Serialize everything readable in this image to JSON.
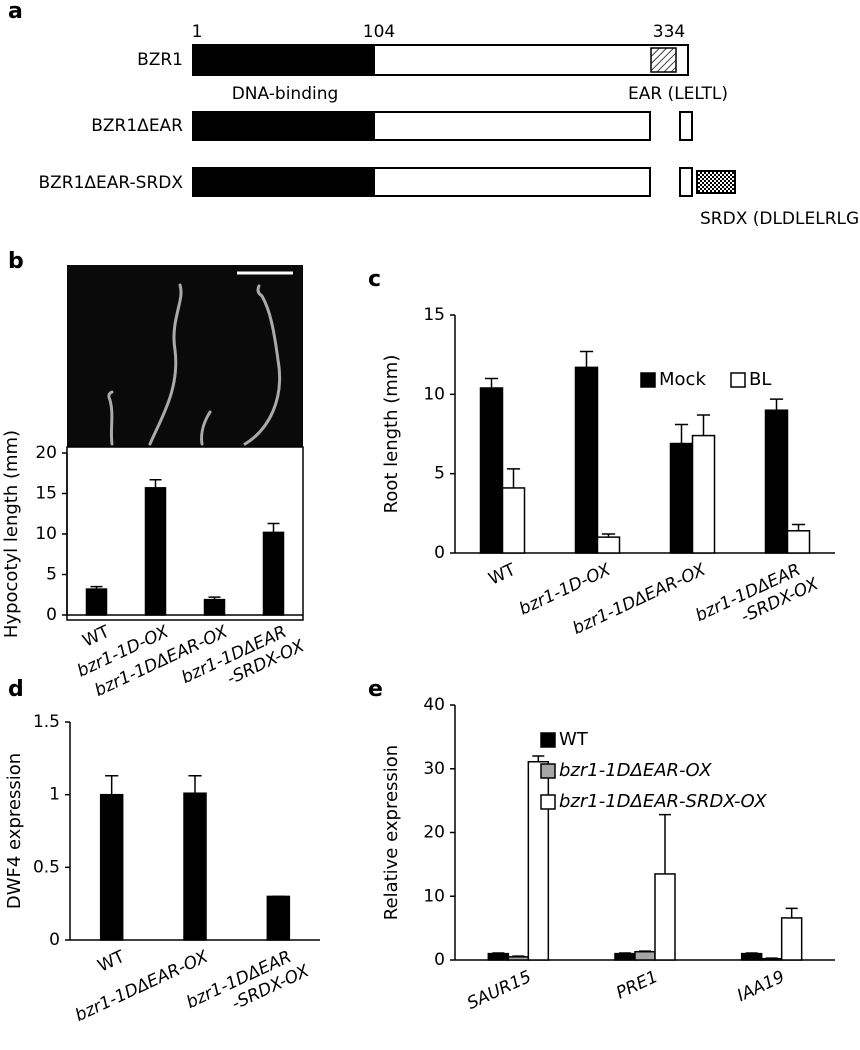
{
  "diagram": {
    "panel_label": "a",
    "positions": [
      "1",
      "104",
      "334"
    ],
    "constructs": [
      "BZR1",
      "BZR1ΔEAR",
      "BZR1ΔEAR-SRDX"
    ],
    "annotations": [
      "DNA-binding",
      "EAR (LELTL)",
      "SRDX (DLDLELRLGFA)"
    ]
  },
  "chart_data": [
    {
      "type": "bar",
      "panel_label": "b",
      "ylabel": "Hypocotyl length (mm)",
      "categories": [
        "WT",
        "bzr1-1D-OX",
        "bzr1-1DΔEAR-OX",
        "bzr1-1DΔEAR\n-SRDX-OX"
      ],
      "italic_categories": [
        false,
        true,
        true,
        true
      ],
      "values": [
        3.2,
        15.7,
        1.9,
        10.2
      ],
      "errors": [
        0.3,
        1.0,
        0.3,
        1.1
      ],
      "color": "#000000",
      "ylim": [
        0,
        20
      ],
      "yticks": [
        0,
        5,
        10,
        15,
        20
      ],
      "frame": true
    },
    {
      "type": "bar",
      "panel_label": "c",
      "ylabel": "Root length (mm)",
      "categories": [
        "WT",
        "bzr1-1D-OX",
        "bzr1-1DΔEAR-OX",
        "bzr1-1DΔEAR\n-SRDX-OX"
      ],
      "italic_categories": [
        false,
        true,
        true,
        true
      ],
      "series": [
        {
          "name": "Mock",
          "color": "#000000",
          "values": [
            10.4,
            11.7,
            6.9,
            9.0
          ],
          "errors": [
            0.6,
            1.0,
            1.2,
            0.7
          ]
        },
        {
          "name": "BL",
          "color": "#ffffff",
          "values": [
            4.1,
            1.0,
            7.4,
            1.4
          ],
          "errors": [
            1.2,
            0.2,
            1.3,
            0.4
          ]
        }
      ],
      "ylim": [
        0,
        15
      ],
      "yticks": [
        0,
        5,
        10,
        15
      ],
      "legend": "upper right"
    },
    {
      "type": "bar",
      "panel_label": "d",
      "ylabel": "DWF4 expression",
      "categories": [
        "WT",
        "bzr1-1DΔEAR-OX",
        "bzr1-1DΔEAR\n-SRDX-OX"
      ],
      "italic_categories": [
        false,
        true,
        true
      ],
      "values": [
        1.0,
        1.01,
        0.3
      ],
      "errors": [
        0.13,
        0.12,
        0.0
      ],
      "color": "#000000",
      "ylim": [
        0,
        1.5
      ],
      "yticks": [
        0,
        0.5,
        1,
        1.5
      ]
    },
    {
      "type": "bar",
      "panel_label": "e",
      "ylabel": "Relative expression",
      "categories": [
        "SAUR15",
        "PRE1",
        "IAA19"
      ],
      "italic_categories": [
        true,
        true,
        true
      ],
      "series": [
        {
          "name": "WT",
          "color": "#000000",
          "values": [
            1.0,
            1.0,
            1.0
          ],
          "errors": [
            0.1,
            0.1,
            0.1
          ],
          "italic": false
        },
        {
          "name": "bzr1-1DΔEAR-OX",
          "color": "#a6a6a6",
          "values": [
            0.5,
            1.3,
            0.2
          ],
          "errors": [
            0.1,
            0.1,
            0.1
          ],
          "italic": true
        },
        {
          "name": "bzr1-1DΔEAR-SRDX-OX",
          "color": "#ffffff",
          "values": [
            31.1,
            13.5,
            6.6
          ],
          "errors": [
            0.9,
            9.3,
            1.5
          ],
          "italic": true
        }
      ],
      "ylim": [
        0,
        40
      ],
      "yticks": [
        0,
        10,
        20,
        30,
        40
      ],
      "legend": "upper center"
    }
  ]
}
